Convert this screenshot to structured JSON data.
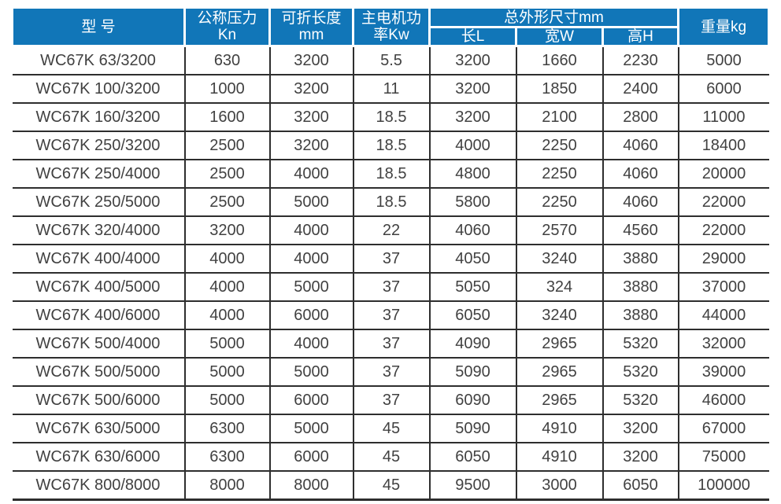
{
  "colors": {
    "header_bg": "#1176b8",
    "header_text": "#ffffff",
    "body_text": "#414141",
    "grid_line": "#2e2e2e"
  },
  "table": {
    "headers": {
      "model": "型 号",
      "pressure_line1": "公称压力",
      "pressure_line2": "Kn",
      "fold_length_line1": "可折长度",
      "fold_length_line2": "mm",
      "motor_power_line1": "主电机功",
      "motor_power_line2": "率Kw",
      "overall_dimensions": "总外形尺寸mm",
      "dim_length": "长L",
      "dim_width": "宽W",
      "dim_height": "高H",
      "weight": "重量kg"
    },
    "rows": [
      [
        "WC67K 63/3200",
        "630",
        "3200",
        "5.5",
        "3200",
        "1660",
        "2230",
        "5000"
      ],
      [
        "WC67K 100/3200",
        "1000",
        "3200",
        "11",
        "3200",
        "1850",
        "2400",
        "6000"
      ],
      [
        "WC67K 160/3200",
        "1600",
        "3200",
        "18.5",
        "3200",
        "2100",
        "2800",
        "11000"
      ],
      [
        "WC67K 250/3200",
        "2500",
        "3200",
        "18.5",
        "4000",
        "2250",
        "4060",
        "18400"
      ],
      [
        "WC67K 250/4000",
        "2500",
        "4000",
        "18.5",
        "4800",
        "2250",
        "4060",
        "20000"
      ],
      [
        "WC67K 250/5000",
        "2500",
        "5000",
        "18.5",
        "5800",
        "2250",
        "4060",
        "22000"
      ],
      [
        "WC67K 320/4000",
        "3200",
        "4000",
        "22",
        "4060",
        "2570",
        "4560",
        "22000"
      ],
      [
        "WC67K 400/4000",
        "4000",
        "4000",
        "37",
        "4050",
        "3240",
        "3880",
        "29000"
      ],
      [
        "WC67K 400/5000",
        "4000",
        "5000",
        "37",
        "5050",
        "324",
        "3880",
        "37000"
      ],
      [
        "WC67K 400/6000",
        "4000",
        "6000",
        "37",
        "6050",
        "3240",
        "3880",
        "44000"
      ],
      [
        "WC67K 500/4000",
        "5000",
        "4000",
        "37",
        "4090",
        "2965",
        "5320",
        "32000"
      ],
      [
        "WC67K 500/5000",
        "5000",
        "5000",
        "37",
        "5090",
        "2965",
        "5320",
        "39000"
      ],
      [
        "WC67K 500/6000",
        "5000",
        "6000",
        "37",
        "6090",
        "2965",
        "5320",
        "46000"
      ],
      [
        "WC67K 630/5000",
        "6300",
        "5000",
        "45",
        "5090",
        "4910",
        "3200",
        "67000"
      ],
      [
        "WC67K 630/6000",
        "6300",
        "6000",
        "45",
        "6050",
        "4910",
        "3200",
        "75000"
      ],
      [
        "WC67K 800/8000",
        "8000",
        "8000",
        "45",
        "9500",
        "3000",
        "6050",
        "100000"
      ]
    ]
  }
}
